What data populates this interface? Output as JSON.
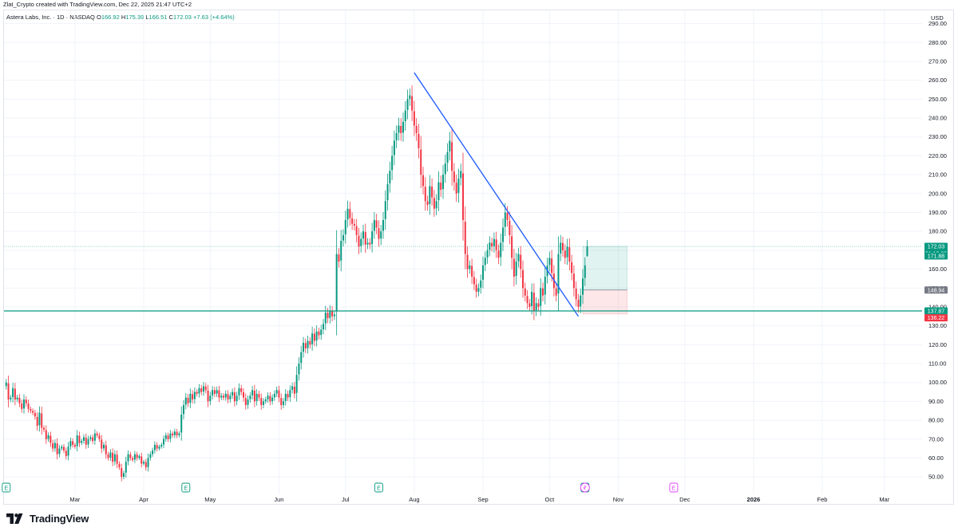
{
  "header": {
    "credit": "Zlat_Crypto created with TradingView.com, Dec 22, 2025 21:47 UTC+2"
  },
  "symbol": {
    "name": "Astera Labs, Inc. · 1D · NASDAQ",
    "o_label": "O",
    "o": "166.92",
    "h_label": "H",
    "h": "175.39",
    "l_label": "L",
    "l": "166.51",
    "c_label": "C",
    "c": "172.03",
    "change": "+7.63 (+4.64%)"
  },
  "footer": {
    "brand": "TradingView"
  },
  "colors": {
    "up": "#089981",
    "down": "#f23645",
    "trendline": "#2962ff",
    "support": "#089981",
    "grid": "#f0f3fa",
    "earnings": "#089981",
    "dividend": "#e040fb"
  },
  "chart_data": {
    "type": "candlestick",
    "currency": "USD",
    "ylim": [
      45,
      297
    ],
    "y_ticks": [
      "290.00",
      "280.00",
      "270.00",
      "260.00",
      "250.00",
      "240.00",
      "230.00",
      "220.00",
      "210.00",
      "200.00",
      "190.00",
      "180.00",
      "170.00",
      "160.00",
      "150.00",
      "140.00",
      "130.00",
      "120.00",
      "110.00",
      "100.00",
      "90.00",
      "80.00",
      "70.00",
      "60.00",
      "50.00"
    ],
    "x_ticks": [
      {
        "label": "Mar",
        "day": 58
      },
      {
        "label": "Apr",
        "day": 89
      },
      {
        "label": "May",
        "day": 119
      },
      {
        "label": "Jun",
        "day": 150
      },
      {
        "label": "Jul",
        "day": 180
      },
      {
        "label": "Aug",
        "day": 211
      },
      {
        "label": "Sep",
        "day": 242
      },
      {
        "label": "Oct",
        "day": 272
      },
      {
        "label": "Nov",
        "day": 303
      },
      {
        "label": "Dec",
        "day": 333
      },
      {
        "label": "2026",
        "day": 364
      },
      {
        "label": "Feb",
        "day": 395
      },
      {
        "label": "Mar",
        "day": 423
      }
    ],
    "x_range": [
      26,
      440
    ],
    "closes": [
      [
        27,
        100
      ],
      [
        28,
        91
      ],
      [
        29,
        92
      ],
      [
        30,
        97
      ],
      [
        31,
        91
      ],
      [
        32,
        92
      ],
      [
        33,
        89
      ],
      [
        34,
        86
      ],
      [
        35,
        91
      ],
      [
        36,
        89
      ],
      [
        37,
        86
      ],
      [
        38,
        85
      ],
      [
        39,
        84
      ],
      [
        40,
        82
      ],
      [
        41,
        77
      ],
      [
        42,
        84
      ],
      [
        43,
        76
      ],
      [
        44,
        75
      ],
      [
        45,
        70
      ],
      [
        46,
        72
      ],
      [
        47,
        68
      ],
      [
        48,
        65
      ],
      [
        49,
        68
      ],
      [
        50,
        62
      ],
      [
        51,
        65
      ],
      [
        52,
        66
      ],
      [
        53,
        64
      ],
      [
        54,
        61
      ],
      [
        55,
        66
      ],
      [
        56,
        69
      ],
      [
        57,
        67
      ],
      [
        58,
        66
      ],
      [
        59,
        72
      ],
      [
        60,
        68
      ],
      [
        61,
        69
      ],
      [
        62,
        71
      ],
      [
        63,
        67
      ],
      [
        64,
        70
      ],
      [
        65,
        71
      ],
      [
        66,
        69
      ],
      [
        67,
        73
      ],
      [
        68,
        72
      ],
      [
        69,
        70
      ],
      [
        70,
        65
      ],
      [
        71,
        67
      ],
      [
        72,
        62
      ],
      [
        73,
        60
      ],
      [
        74,
        63
      ],
      [
        75,
        58
      ],
      [
        76,
        62
      ],
      [
        77,
        57
      ],
      [
        78,
        55
      ],
      [
        79,
        50
      ],
      [
        80,
        52
      ],
      [
        81,
        58
      ],
      [
        82,
        62
      ],
      [
        83,
        60
      ],
      [
        84,
        59
      ],
      [
        85,
        62
      ],
      [
        86,
        60
      ],
      [
        87,
        61
      ],
      [
        88,
        57
      ],
      [
        89,
        58
      ],
      [
        90,
        55
      ],
      [
        91,
        60
      ],
      [
        92,
        62
      ],
      [
        93,
        64
      ],
      [
        94,
        67
      ],
      [
        95,
        65
      ],
      [
        96,
        66
      ],
      [
        97,
        67
      ],
      [
        98,
        70
      ],
      [
        99,
        72
      ],
      [
        100,
        70
      ],
      [
        101,
        73
      ],
      [
        102,
        72
      ],
      [
        103,
        74
      ],
      [
        104,
        72
      ],
      [
        105,
        73
      ],
      [
        106,
        83
      ],
      [
        107,
        88
      ],
      [
        108,
        92
      ],
      [
        109,
        89
      ],
      [
        110,
        94
      ],
      [
        111,
        91
      ],
      [
        112,
        95
      ],
      [
        113,
        94
      ],
      [
        114,
        97
      ],
      [
        115,
        95
      ],
      [
        116,
        98
      ],
      [
        117,
        96
      ],
      [
        118,
        90
      ],
      [
        119,
        93
      ],
      [
        120,
        96
      ],
      [
        121,
        94
      ],
      [
        122,
        96
      ],
      [
        123,
        92
      ],
      [
        124,
        93
      ],
      [
        125,
        92
      ],
      [
        126,
        94
      ],
      [
        127,
        91
      ],
      [
        128,
        93
      ],
      [
        129,
        95
      ],
      [
        130,
        90
      ],
      [
        131,
        93
      ],
      [
        132,
        97
      ],
      [
        133,
        95
      ],
      [
        134,
        92
      ],
      [
        135,
        88
      ],
      [
        136,
        91
      ],
      [
        137,
        93
      ],
      [
        138,
        96
      ],
      [
        139,
        90
      ],
      [
        140,
        94
      ],
      [
        141,
        92
      ],
      [
        142,
        88
      ],
      [
        143,
        90
      ],
      [
        144,
        91
      ],
      [
        145,
        93
      ],
      [
        146,
        90
      ],
      [
        147,
        92
      ],
      [
        148,
        94
      ],
      [
        149,
        96
      ],
      [
        150,
        92
      ],
      [
        151,
        88
      ],
      [
        152,
        90
      ],
      [
        153,
        94
      ],
      [
        154,
        92
      ],
      [
        155,
        96
      ],
      [
        156,
        98
      ],
      [
        157,
        94
      ],
      [
        158,
        104
      ],
      [
        159,
        110
      ],
      [
        160,
        116
      ],
      [
        161,
        121
      ],
      [
        162,
        118
      ],
      [
        163,
        122
      ],
      [
        164,
        120
      ],
      [
        165,
        126
      ],
      [
        166,
        122
      ],
      [
        167,
        127
      ],
      [
        168,
        125
      ],
      [
        169,
        128
      ],
      [
        170,
        131
      ],
      [
        171,
        137
      ],
      [
        172,
        134
      ],
      [
        173,
        138
      ],
      [
        174,
        135
      ],
      [
        175,
        136
      ],
      [
        176,
        168
      ],
      [
        177,
        164
      ],
      [
        178,
        175
      ],
      [
        179,
        178
      ],
      [
        180,
        186
      ],
      [
        181,
        192
      ],
      [
        182,
        187
      ],
      [
        183,
        184
      ],
      [
        184,
        183
      ],
      [
        185,
        178
      ],
      [
        186,
        172
      ],
      [
        187,
        176
      ],
      [
        188,
        180
      ],
      [
        189,
        173
      ],
      [
        190,
        174
      ],
      [
        191,
        173
      ],
      [
        192,
        180
      ],
      [
        193,
        186
      ],
      [
        194,
        182
      ],
      [
        195,
        176
      ],
      [
        196,
        180
      ],
      [
        197,
        186
      ],
      [
        198,
        196
      ],
      [
        199,
        205
      ],
      [
        200,
        212
      ],
      [
        201,
        220
      ],
      [
        202,
        228
      ],
      [
        203,
        232
      ],
      [
        204,
        236
      ],
      [
        205,
        232
      ],
      [
        206,
        238
      ],
      [
        207,
        244
      ],
      [
        208,
        250
      ],
      [
        209,
        252
      ],
      [
        210,
        244
      ],
      [
        211,
        236
      ],
      [
        212,
        232
      ],
      [
        213,
        224
      ],
      [
        214,
        210
      ],
      [
        215,
        204
      ],
      [
        216,
        196
      ],
      [
        217,
        194
      ],
      [
        218,
        204
      ],
      [
        219,
        198
      ],
      [
        220,
        192
      ],
      [
        221,
        196
      ],
      [
        222,
        206
      ],
      [
        223,
        202
      ],
      [
        224,
        210
      ],
      [
        225,
        216
      ],
      [
        226,
        222
      ],
      [
        227,
        228
      ],
      [
        228,
        212
      ],
      [
        229,
        206
      ],
      [
        230,
        200
      ],
      [
        231,
        208
      ],
      [
        232,
        212
      ],
      [
        233,
        186
      ],
      [
        234,
        168
      ],
      [
        235,
        160
      ],
      [
        236,
        162
      ],
      [
        237,
        156
      ],
      [
        238,
        152
      ],
      [
        239,
        148
      ],
      [
        240,
        150
      ],
      [
        241,
        154
      ],
      [
        242,
        162
      ],
      [
        243,
        166
      ],
      [
        244,
        170
      ],
      [
        245,
        174
      ],
      [
        246,
        172
      ],
      [
        247,
        176
      ],
      [
        248,
        170
      ],
      [
        249,
        166
      ],
      [
        250,
        174
      ],
      [
        251,
        182
      ],
      [
        252,
        190
      ],
      [
        253,
        186
      ],
      [
        254,
        178
      ],
      [
        255,
        166
      ],
      [
        256,
        156
      ],
      [
        257,
        164
      ],
      [
        258,
        168
      ],
      [
        259,
        160
      ],
      [
        260,
        150
      ],
      [
        261,
        146
      ],
      [
        262,
        142
      ],
      [
        263,
        140
      ],
      [
        264,
        148
      ],
      [
        265,
        138
      ],
      [
        266,
        142
      ],
      [
        267,
        140
      ],
      [
        268,
        150
      ],
      [
        269,
        146
      ],
      [
        270,
        156
      ],
      [
        271,
        162
      ],
      [
        272,
        166
      ],
      [
        273,
        158
      ],
      [
        274,
        150
      ],
      [
        275,
        146
      ],
      [
        276,
        168
      ],
      [
        277,
        174
      ],
      [
        278,
        170
      ],
      [
        279,
        166
      ],
      [
        280,
        172
      ],
      [
        281,
        164
      ],
      [
        282,
        158
      ],
      [
        283,
        150
      ],
      [
        284,
        144
      ],
      [
        285,
        140
      ],
      [
        286,
        146
      ],
      [
        287,
        155
      ],
      [
        288,
        162
      ],
      [
        289,
        172
      ]
    ],
    "last_candle": {
      "open": 166.92,
      "high": 175.39,
      "low": 166.51,
      "close": 172.03
    },
    "trendline": {
      "from": {
        "day": 211,
        "price": 264
      },
      "to": {
        "day": 285,
        "price": 135
      }
    },
    "support_level": 137.87,
    "current_price_line": 172.03,
    "position": {
      "target": 172.03,
      "entry": 148.94,
      "stop": 136.22,
      "from_day": 287,
      "to_day": 307
    },
    "price_labels": [
      {
        "text": "172.03",
        "sub": "01:12:23",
        "price": 172.03,
        "color": "#089981"
      },
      {
        "text": "171.88",
        "price": 167.0,
        "color": "#089981"
      },
      {
        "text": "148.94",
        "price": 148.94,
        "color": "#787b86"
      },
      {
        "text": "137.87",
        "price": 137.87,
        "color": "#089981"
      },
      {
        "text": "136.22",
        "price": 134.2,
        "color": "#f23645"
      }
    ],
    "events": [
      {
        "type": "earnings",
        "day": 27,
        "label": "E"
      },
      {
        "type": "earnings",
        "day": 108,
        "label": "E"
      },
      {
        "type": "earnings",
        "day": 195,
        "label": "E"
      },
      {
        "type": "earnings",
        "day": 288,
        "label": "E"
      },
      {
        "type": "dividend",
        "day": 328,
        "label": "E"
      }
    ],
    "splash_day": 288
  }
}
